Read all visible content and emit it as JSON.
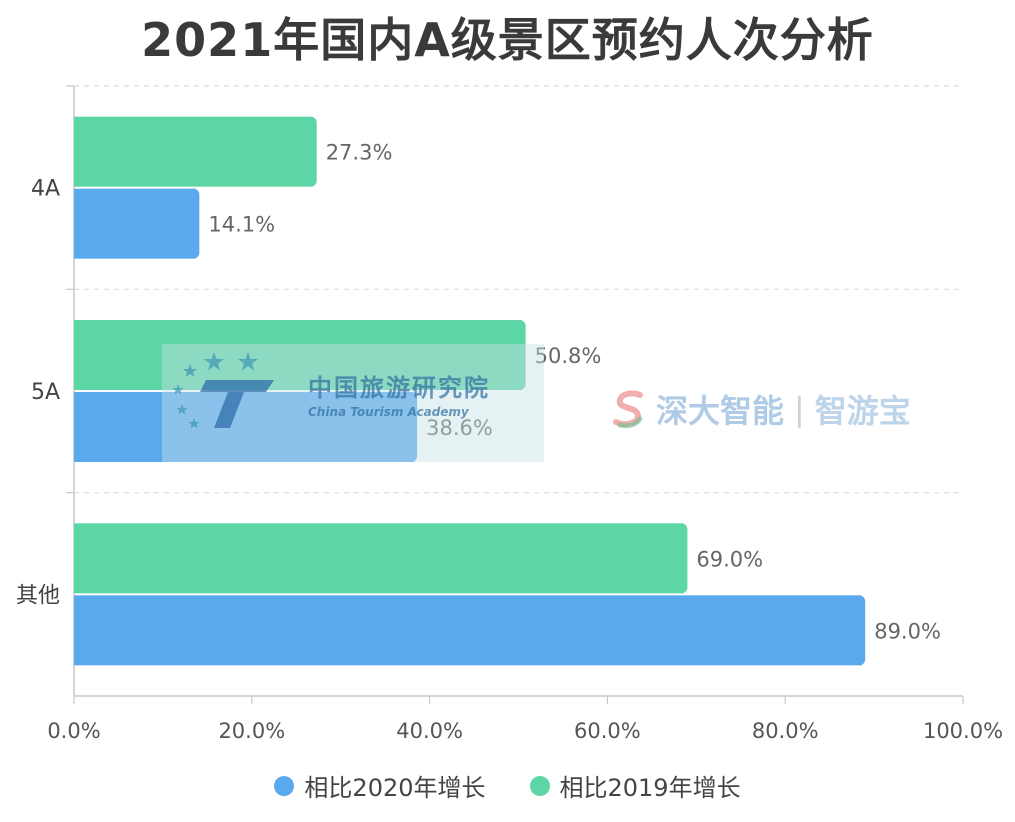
{
  "title": "2021年国内A级景区预约人次分析",
  "colors": {
    "series_2020": "#5aa9ef",
    "series_2019": "#5dd6a6",
    "grid": "#dcdcdc",
    "axis": "#c8c8c8",
    "tick_text": "#555555",
    "label_text": "#666666"
  },
  "chart_data": {
    "type": "bar",
    "orientation": "horizontal",
    "title": "2021年国内A级景区预约人次分析",
    "categories": [
      "4A",
      "5A",
      "其他"
    ],
    "series": [
      {
        "name": "相比2019年增长",
        "color": "#5dd6a6",
        "values": [
          27.3,
          50.8,
          69.0
        ],
        "labels": [
          "27.3%",
          "50.8%",
          "69.0%"
        ]
      },
      {
        "name": "相比2020年增长",
        "color": "#5aa9ef",
        "values": [
          14.1,
          38.6,
          89.0
        ],
        "labels": [
          "14.1%",
          "38.6%",
          "89.0%"
        ]
      }
    ],
    "xlim": [
      0,
      100
    ],
    "x_ticks": [
      "0.0%",
      "20.0%",
      "40.0%",
      "60.0%",
      "80.0%",
      "100.0%"
    ],
    "grid": true,
    "legend_position": "bottom"
  },
  "legend": [
    {
      "label": "相比2020年增长",
      "color": "#5aa9ef"
    },
    {
      "label": "相比2019年增长",
      "color": "#5dd6a6"
    }
  ],
  "watermarks": {
    "cta_cn": "中国旅游研究院",
    "cta_en": "China Tourism Academy",
    "sd_a": "深大智能",
    "sd_sep": "|",
    "sd_b": "智游宝"
  }
}
